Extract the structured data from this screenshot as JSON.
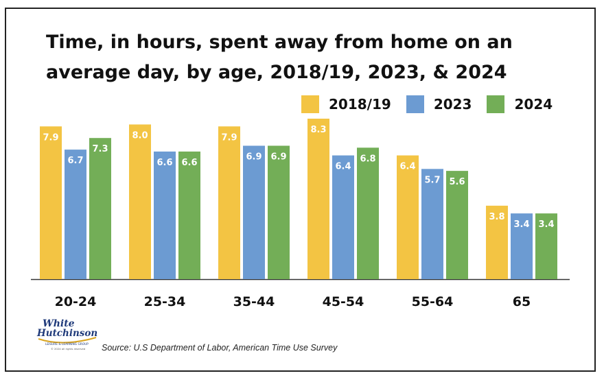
{
  "chart_data": {
    "type": "bar",
    "title": "Time, in hours, spent away from home on an average day, by age, 2018/19, 2023, & 2024",
    "categories": [
      "20-24",
      "25-34",
      "35-44",
      "45-54",
      "55-64",
      "65"
    ],
    "series": [
      {
        "name": "2018/19",
        "color": "#F3C443",
        "values": [
          7.9,
          8.0,
          7.9,
          8.3,
          6.4,
          3.8
        ]
      },
      {
        "name": "2023",
        "color": "#6C9BD2",
        "values": [
          6.7,
          6.6,
          6.9,
          6.4,
          5.7,
          3.4
        ]
      },
      {
        "name": "2024",
        "color": "#73AE57",
        "values": [
          7.3,
          6.6,
          6.9,
          6.8,
          5.6,
          3.4
        ]
      }
    ],
    "data_labels": [
      [
        "7.9",
        "8.0",
        "7.9",
        "8.3",
        "6.4",
        "3.8"
      ],
      [
        "6.7",
        "6.6",
        "6.9",
        "6.4",
        "5.7",
        "3.4"
      ],
      [
        "7.3",
        "6.6",
        "6.9",
        "6.8",
        "5.6",
        "3.4"
      ]
    ],
    "xlabel": "",
    "ylabel": "",
    "ylim": [
      0,
      8.3
    ],
    "grid": false,
    "legend_position": "top-right"
  },
  "source": "Source: U.S Department of Labor, American Time Use Survey",
  "logo": {
    "line1": "White",
    "line2": "Hutchinson",
    "tagline": "LEISURE & LEARNING GROUP",
    "copyright": "© 2024 all rights reserved",
    "colors": {
      "navy": "#1F3A7A",
      "gold": "#D9A521"
    }
  }
}
